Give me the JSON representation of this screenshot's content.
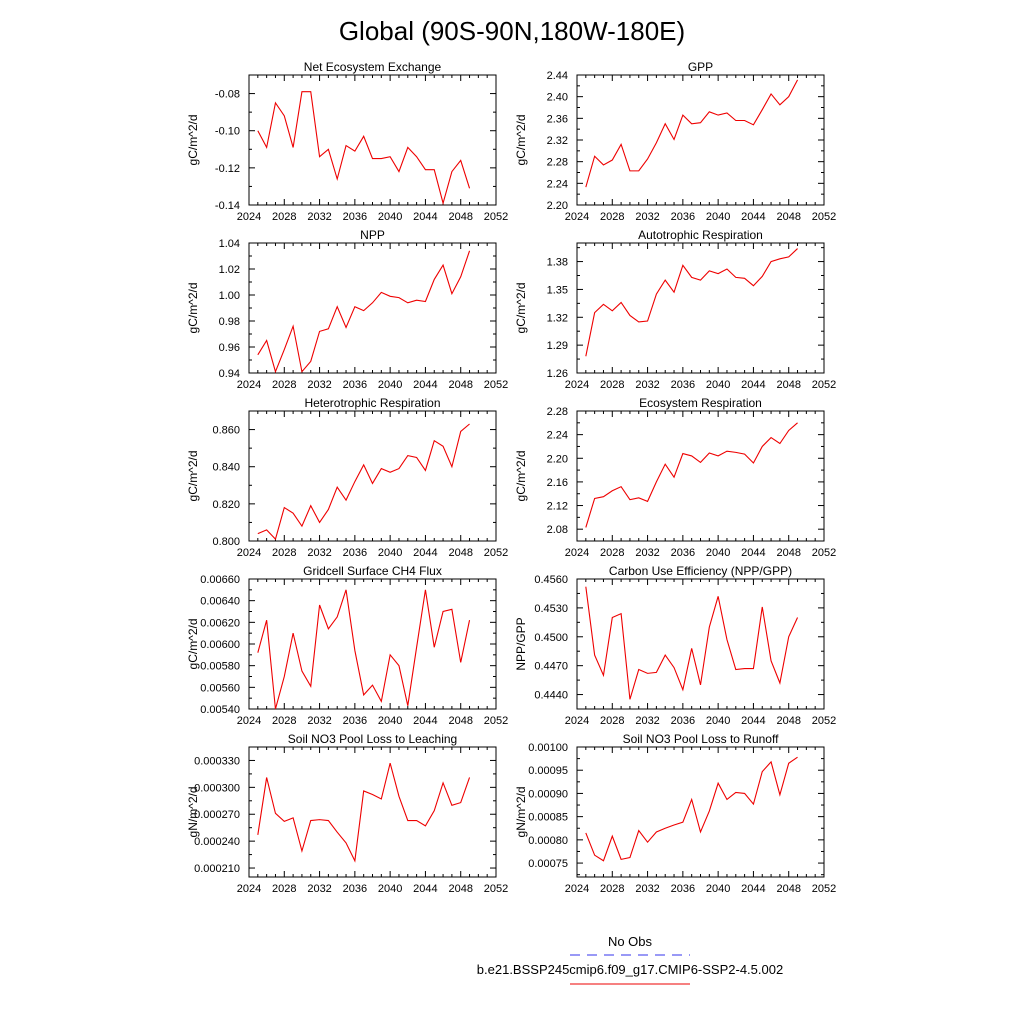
{
  "title": "Global (90S-90N,180W-180E)",
  "legend": {
    "obs_label": "No Obs",
    "case_label": "b.e21.BSSP245cmip6.f09_g17.CMIP6-SSP2-4.5.002",
    "obs_color": "#3333ee",
    "case_color": "#ee0000"
  },
  "colors": {
    "line": "#ee0000",
    "axis": "#000000"
  },
  "chart_data": [
    {
      "type": "line",
      "title": "Net Ecosystem Exchange",
      "ylabel": "gC/m^2/d",
      "xlim": [
        2024,
        2052
      ],
      "ylim": [
        -0.14,
        -0.07
      ],
      "xticks": [
        "2024",
        "2028",
        "2032",
        "2036",
        "2040",
        "2044",
        "2048",
        "2052"
      ],
      "yticks": [
        "-0.14",
        "-0.12",
        "-0.10",
        "-0.08"
      ],
      "series": [
        {
          "name": "b.e21.BSSP245cmip6.f09_g17.CMIP6-SSP2-4.5.002",
          "x": [
            2025,
            2026,
            2027,
            2028,
            2029,
            2030,
            2031,
            2032,
            2033,
            2034,
            2035,
            2036,
            2037,
            2038,
            2039,
            2040,
            2041,
            2042,
            2043,
            2044,
            2045,
            2046,
            2047,
            2048,
            2049
          ],
          "values": [
            -0.1,
            -0.109,
            -0.085,
            -0.092,
            -0.109,
            -0.079,
            -0.079,
            -0.114,
            -0.11,
            -0.126,
            -0.108,
            -0.111,
            -0.103,
            -0.115,
            -0.115,
            -0.114,
            -0.122,
            -0.109,
            -0.114,
            -0.121,
            -0.121,
            -0.139,
            -0.122,
            -0.116,
            -0.131
          ]
        }
      ]
    },
    {
      "type": "line",
      "title": "GPP",
      "ylabel": "gC/m^2/d",
      "xlim": [
        2024,
        2052
      ],
      "ylim": [
        2.2,
        2.44
      ],
      "xticks": [
        "2024",
        "2028",
        "2032",
        "2036",
        "2040",
        "2044",
        "2048",
        "2052"
      ],
      "yticks": [
        "2.20",
        "2.24",
        "2.28",
        "2.32",
        "2.36",
        "2.40",
        "2.44"
      ],
      "series": [
        {
          "name": "b.e21.BSSP245cmip6.f09_g17.CMIP6-SSP2-4.5.002",
          "x": [
            2025,
            2026,
            2027,
            2028,
            2029,
            2030,
            2031,
            2032,
            2033,
            2034,
            2035,
            2036,
            2037,
            2038,
            2039,
            2040,
            2041,
            2042,
            2043,
            2044,
            2045,
            2046,
            2047,
            2048,
            2049
          ],
          "values": [
            2.233,
            2.29,
            2.274,
            2.283,
            2.312,
            2.263,
            2.263,
            2.285,
            2.315,
            2.35,
            2.321,
            2.366,
            2.35,
            2.352,
            2.372,
            2.366,
            2.37,
            2.356,
            2.356,
            2.348,
            2.376,
            2.405,
            2.385,
            2.4,
            2.431
          ]
        }
      ]
    },
    {
      "type": "line",
      "title": "NPP",
      "ylabel": "gC/m^2/d",
      "xlim": [
        2024,
        2052
      ],
      "ylim": [
        0.94,
        1.04
      ],
      "xticks": [
        "2024",
        "2028",
        "2032",
        "2036",
        "2040",
        "2044",
        "2048",
        "2052"
      ],
      "yticks": [
        "0.94",
        "0.96",
        "0.98",
        "1.00",
        "1.02",
        "1.04"
      ],
      "series": [
        {
          "name": "b.e21.BSSP245cmip6.f09_g17.CMIP6-SSP2-4.5.002",
          "x": [
            2025,
            2026,
            2027,
            2028,
            2029,
            2030,
            2031,
            2032,
            2033,
            2034,
            2035,
            2036,
            2037,
            2038,
            2039,
            2040,
            2041,
            2042,
            2043,
            2044,
            2045,
            2046,
            2047,
            2048,
            2049
          ],
          "values": [
            0.954,
            0.965,
            0.941,
            0.958,
            0.976,
            0.941,
            0.949,
            0.972,
            0.974,
            0.991,
            0.975,
            0.991,
            0.988,
            0.994,
            1.002,
            0.999,
            0.998,
            0.994,
            0.996,
            0.995,
            1.012,
            1.023,
            1.001,
            1.014,
            1.034
          ]
        }
      ]
    },
    {
      "type": "line",
      "title": "Autotrophic Respiration",
      "ylabel": "gC/m^2/d",
      "xlim": [
        2024,
        2052
      ],
      "ylim": [
        1.26,
        1.4
      ],
      "xticks": [
        "2024",
        "2028",
        "2032",
        "2036",
        "2040",
        "2044",
        "2048",
        "2052"
      ],
      "yticks": [
        "1.26",
        "1.29",
        "1.32",
        "1.35",
        "1.38"
      ],
      "series": [
        {
          "name": "b.e21.BSSP245cmip6.f09_g17.CMIP6-SSP2-4.5.002",
          "x": [
            2025,
            2026,
            2027,
            2028,
            2029,
            2030,
            2031,
            2032,
            2033,
            2034,
            2035,
            2036,
            2037,
            2038,
            2039,
            2040,
            2041,
            2042,
            2043,
            2044,
            2045,
            2046,
            2047,
            2048,
            2049
          ],
          "values": [
            1.278,
            1.325,
            1.334,
            1.327,
            1.336,
            1.322,
            1.315,
            1.316,
            1.345,
            1.36,
            1.347,
            1.376,
            1.363,
            1.36,
            1.37,
            1.367,
            1.372,
            1.363,
            1.362,
            1.354,
            1.364,
            1.38,
            1.383,
            1.385,
            1.394
          ]
        }
      ]
    },
    {
      "type": "line",
      "title": "Heterotrophic Respiration",
      "ylabel": "gC/m^2/d",
      "xlim": [
        2024,
        2052
      ],
      "ylim": [
        0.8,
        0.87
      ],
      "xticks": [
        "2024",
        "2028",
        "2032",
        "2036",
        "2040",
        "2044",
        "2048",
        "2052"
      ],
      "yticks": [
        "0.800",
        "0.820",
        "0.840",
        "0.860"
      ],
      "series": [
        {
          "name": "b.e21.BSSP245cmip6.f09_g17.CMIP6-SSP2-4.5.002",
          "x": [
            2025,
            2026,
            2027,
            2028,
            2029,
            2030,
            2031,
            2032,
            2033,
            2034,
            2035,
            2036,
            2037,
            2038,
            2039,
            2040,
            2041,
            2042,
            2043,
            2044,
            2045,
            2046,
            2047,
            2048,
            2049
          ],
          "values": [
            0.804,
            0.806,
            0.801,
            0.818,
            0.815,
            0.808,
            0.819,
            0.81,
            0.817,
            0.829,
            0.822,
            0.832,
            0.841,
            0.831,
            0.839,
            0.837,
            0.839,
            0.846,
            0.845,
            0.838,
            0.854,
            0.851,
            0.84,
            0.859,
            0.863
          ]
        }
      ]
    },
    {
      "type": "line",
      "title": "Ecosystem Respiration",
      "ylabel": "gC/m^2/d",
      "xlim": [
        2024,
        2052
      ],
      "ylim": [
        2.06,
        2.28
      ],
      "xticks": [
        "2024",
        "2028",
        "2032",
        "2036",
        "2040",
        "2044",
        "2048",
        "2052"
      ],
      "yticks": [
        "2.08",
        "2.12",
        "2.16",
        "2.20",
        "2.24",
        "2.28"
      ],
      "series": [
        {
          "name": "b.e21.BSSP245cmip6.f09_g17.CMIP6-SSP2-4.5.002",
          "x": [
            2025,
            2026,
            2027,
            2028,
            2029,
            2030,
            2031,
            2032,
            2033,
            2034,
            2035,
            2036,
            2037,
            2038,
            2039,
            2040,
            2041,
            2042,
            2043,
            2044,
            2045,
            2046,
            2047,
            2048,
            2049
          ],
          "values": [
            2.083,
            2.132,
            2.135,
            2.145,
            2.152,
            2.13,
            2.133,
            2.127,
            2.16,
            2.19,
            2.168,
            2.208,
            2.204,
            2.193,
            2.209,
            2.204,
            2.212,
            2.21,
            2.207,
            2.192,
            2.22,
            2.235,
            2.225,
            2.247,
            2.26
          ]
        }
      ]
    },
    {
      "type": "line",
      "title": "Gridcell Surface CH4 Flux",
      "ylabel": "gC/m^2/d",
      "xlim": [
        2024,
        2052
      ],
      "ylim": [
        0.0054,
        0.0066
      ],
      "xticks": [
        "2024",
        "2028",
        "2032",
        "2036",
        "2040",
        "2044",
        "2048",
        "2052"
      ],
      "yticks": [
        "0.00540",
        "0.00560",
        "0.00580",
        "0.00600",
        "0.00620",
        "0.00640",
        "0.00660"
      ],
      "series": [
        {
          "name": "b.e21.BSSP245cmip6.f09_g17.CMIP6-SSP2-4.5.002",
          "x": [
            2025,
            2026,
            2027,
            2028,
            2029,
            2030,
            2031,
            2032,
            2033,
            2034,
            2035,
            2036,
            2037,
            2038,
            2039,
            2040,
            2041,
            2042,
            2043,
            2044,
            2045,
            2046,
            2047,
            2048,
            2049
          ],
          "values": [
            0.00592,
            0.00622,
            0.0054,
            0.0057,
            0.0061,
            0.00575,
            0.00561,
            0.00636,
            0.00614,
            0.00625,
            0.0065,
            0.00594,
            0.00553,
            0.00562,
            0.00547,
            0.0059,
            0.0058,
            0.00543,
            0.00597,
            0.0065,
            0.00597,
            0.0063,
            0.00632,
            0.00583,
            0.00622
          ]
        }
      ]
    },
    {
      "type": "line",
      "title": "Carbon Use Efficiency (NPP/GPP)",
      "ylabel": "NPP/GPP",
      "xlim": [
        2024,
        2052
      ],
      "ylim": [
        0.4425,
        0.456
      ],
      "xticks": [
        "2024",
        "2028",
        "2032",
        "2036",
        "2040",
        "2044",
        "2048",
        "2052"
      ],
      "yticks": [
        "0.4440",
        "0.4470",
        "0.4500",
        "0.4530",
        "0.4560"
      ],
      "series": [
        {
          "name": "b.e21.BSSP245cmip6.f09_g17.CMIP6-SSP2-4.5.002",
          "x": [
            2025,
            2026,
            2027,
            2028,
            2029,
            2030,
            2031,
            2032,
            2033,
            2034,
            2035,
            2036,
            2037,
            2038,
            2039,
            2040,
            2041,
            2042,
            2043,
            2044,
            2045,
            2046,
            2047,
            2048,
            2049
          ],
          "values": [
            0.4552,
            0.4481,
            0.446,
            0.452,
            0.4524,
            0.4435,
            0.4466,
            0.4462,
            0.4463,
            0.4481,
            0.4468,
            0.4445,
            0.4488,
            0.445,
            0.451,
            0.4542,
            0.4497,
            0.4466,
            0.4467,
            0.4467,
            0.4531,
            0.4475,
            0.4452,
            0.45,
            0.452
          ]
        }
      ]
    },
    {
      "type": "line",
      "title": "Soil NO3 Pool Loss to Leaching",
      "ylabel": "gN/m^2/d",
      "xlim": [
        2024,
        2052
      ],
      "ylim": [
        0.0002,
        0.000345
      ],
      "xticks": [
        "2024",
        "2028",
        "2032",
        "2036",
        "2040",
        "2044",
        "2048",
        "2052"
      ],
      "yticks": [
        "0.000210",
        "0.000240",
        "0.000270",
        "0.000300",
        "0.000330"
      ],
      "series": [
        {
          "name": "b.e21.BSSP245cmip6.f09_g17.CMIP6-SSP2-4.5.002",
          "x": [
            2025,
            2026,
            2027,
            2028,
            2029,
            2030,
            2031,
            2032,
            2033,
            2034,
            2035,
            2036,
            2037,
            2038,
            2039,
            2040,
            2041,
            2042,
            2043,
            2044,
            2045,
            2046,
            2047,
            2048,
            2049
          ],
          "values": [
            0.000247,
            0.000311,
            0.000271,
            0.000262,
            0.000266,
            0.000229,
            0.000263,
            0.000264,
            0.000263,
            0.00025,
            0.000238,
            0.000218,
            0.000296,
            0.000292,
            0.000287,
            0.000327,
            0.00029,
            0.000263,
            0.000263,
            0.000257,
            0.000274,
            0.000305,
            0.00028,
            0.000283,
            0.000311
          ]
        }
      ]
    },
    {
      "type": "line",
      "title": "Soil NO3 Pool Loss to Runoff",
      "ylabel": "gN/m^2/d",
      "xlim": [
        2024,
        2052
      ],
      "ylim": [
        0.00072,
        0.001
      ],
      "xticks": [
        "2024",
        "2028",
        "2032",
        "2036",
        "2040",
        "2044",
        "2048",
        "2052"
      ],
      "yticks": [
        "0.00075",
        "0.00080",
        "0.00085",
        "0.00090",
        "0.00095",
        "0.00100"
      ],
      "series": [
        {
          "name": "b.e21.BSSP245cmip6.f09_g17.CMIP6-SSP2-4.5.002",
          "x": [
            2025,
            2026,
            2027,
            2028,
            2029,
            2030,
            2031,
            2032,
            2033,
            2034,
            2035,
            2036,
            2037,
            2038,
            2039,
            2040,
            2041,
            2042,
            2043,
            2044,
            2045,
            2046,
            2047,
            2048,
            2049
          ],
          "values": [
            0.000815,
            0.000767,
            0.000755,
            0.000808,
            0.000758,
            0.000762,
            0.00082,
            0.000795,
            0.000817,
            0.000825,
            0.000832,
            0.000838,
            0.000887,
            0.000817,
            0.000862,
            0.000922,
            0.000887,
            0.000902,
            0.0009,
            0.000877,
            0.000947,
            0.000968,
            0.000897,
            0.000965,
            0.000978
          ]
        }
      ]
    }
  ]
}
